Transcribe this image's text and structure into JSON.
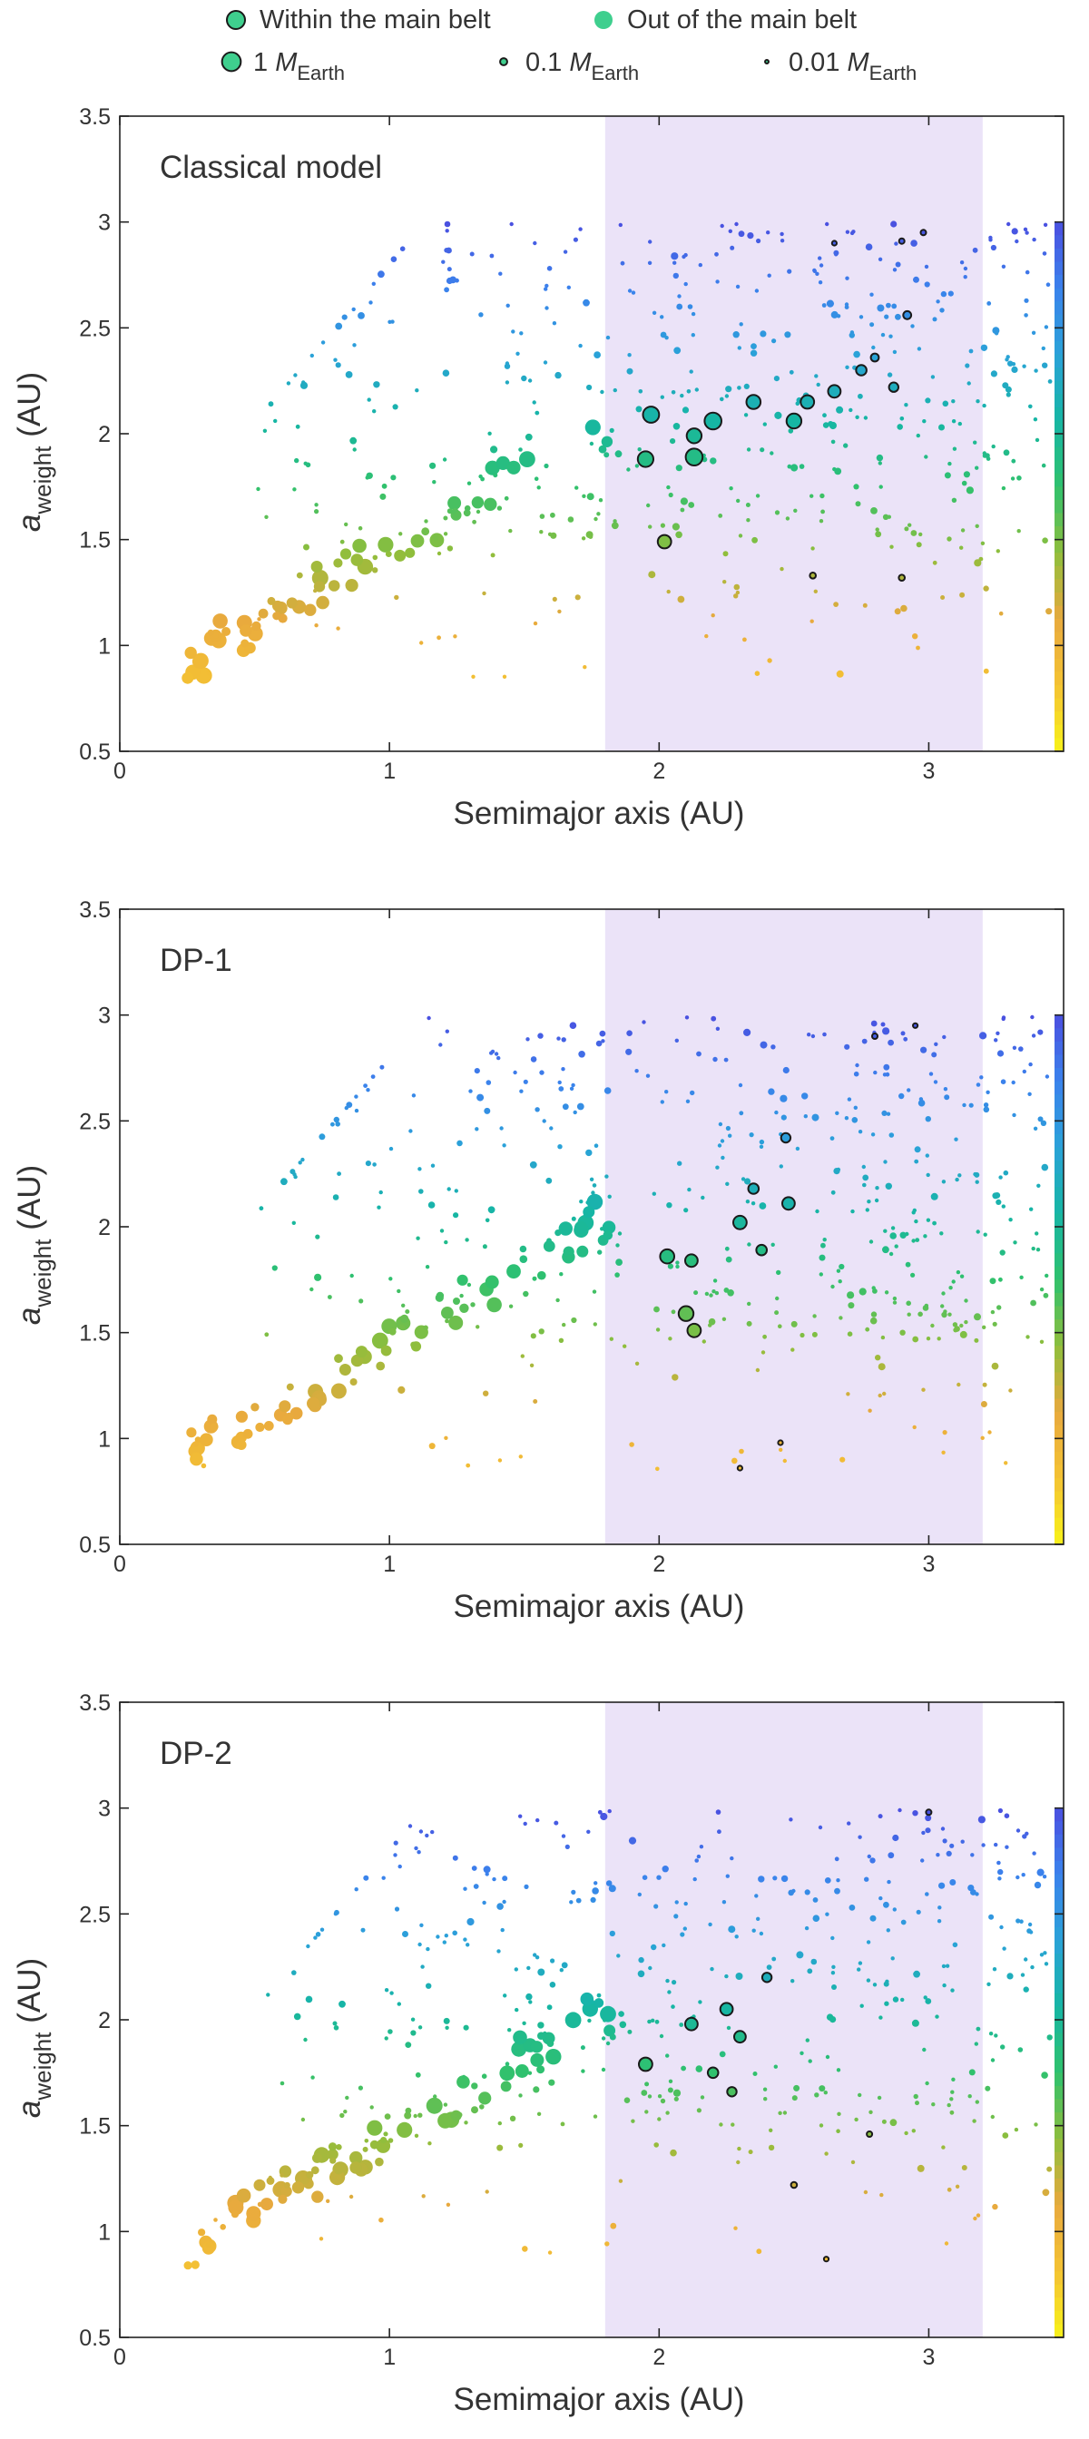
{
  "legend": {
    "row1": [
      {
        "label": "Within the main belt",
        "outlined": true
      },
      {
        "label": "Out of the main belt",
        "outlined": false
      }
    ],
    "row2": [
      {
        "prefix": "1 ",
        "symbol": "M",
        "subscript": "Earth",
        "mass": 1.0
      },
      {
        "prefix": "0.1 ",
        "symbol": "M",
        "subscript": "Earth",
        "mass": 0.1
      },
      {
        "prefix": "0.01 ",
        "symbol": "M",
        "subscript": "Earth",
        "mass": 0.01
      }
    ]
  },
  "colors": {
    "belt_band": "#ebe3f8",
    "outline": "#1a1a1a",
    "legend_fill": "#3fcf8e",
    "colormap": [
      "#f7f21a",
      "#f4c233",
      "#e8a93e",
      "#8fbe3c",
      "#30c16d",
      "#16b6a4",
      "#2aa2d8",
      "#3b82ec",
      "#4a4fe0"
    ]
  },
  "chart_data": [
    {
      "type": "scatter",
      "title": "Classical model",
      "xlabel": "Semimajor axis (AU)",
      "ylabel": {
        "base": "a",
        "sub": "weight",
        "unit": " (AU)"
      },
      "xlim": [
        0,
        3.5
      ],
      "ylim": [
        0.5,
        3.5
      ],
      "xticks": [
        "0",
        "1",
        "2",
        "3"
      ],
      "yticks": [
        "0.5",
        "1",
        "1.5",
        "2",
        "2.5",
        "3",
        "3.5"
      ],
      "main_belt": [
        1.8,
        3.2
      ],
      "colorbar_range": [
        0.5,
        3.0
      ],
      "highlighted_points": [
        {
          "x": 1.97,
          "y": 2.09,
          "m": 0.55
        },
        {
          "x": 1.95,
          "y": 1.88,
          "m": 0.5
        },
        {
          "x": 2.13,
          "y": 1.89,
          "m": 0.6
        },
        {
          "x": 2.13,
          "y": 1.99,
          "m": 0.45
        },
        {
          "x": 2.2,
          "y": 2.06,
          "m": 0.6
        },
        {
          "x": 2.02,
          "y": 1.49,
          "m": 0.35
        },
        {
          "x": 2.35,
          "y": 2.15,
          "m": 0.4
        },
        {
          "x": 2.5,
          "y": 2.06,
          "m": 0.45
        },
        {
          "x": 2.55,
          "y": 2.15,
          "m": 0.35
        },
        {
          "x": 2.65,
          "y": 2.2,
          "m": 0.3
        },
        {
          "x": 2.75,
          "y": 2.3,
          "m": 0.2
        },
        {
          "x": 2.87,
          "y": 2.22,
          "m": 0.15
        },
        {
          "x": 2.92,
          "y": 2.56,
          "m": 0.1
        },
        {
          "x": 2.8,
          "y": 2.36,
          "m": 0.1
        },
        {
          "x": 2.57,
          "y": 1.33,
          "m": 0.05
        },
        {
          "x": 2.9,
          "y": 1.32,
          "m": 0.05
        },
        {
          "x": 2.9,
          "y": 2.91,
          "m": 0.04
        },
        {
          "x": 2.98,
          "y": 2.95,
          "m": 0.04
        },
        {
          "x": 2.65,
          "y": 2.9,
          "m": 0.03
        }
      ],
      "gen": {
        "seed": 11,
        "n_in": 70,
        "n_scatter": 480
      }
    },
    {
      "type": "scatter",
      "title": "DP-1",
      "xlabel": "Semimajor axis (AU)",
      "ylabel": {
        "base": "a",
        "sub": "weight",
        "unit": " (AU)"
      },
      "xlim": [
        0,
        3.5
      ],
      "ylim": [
        0.5,
        3.5
      ],
      "xticks": [
        "0",
        "1",
        "2",
        "3"
      ],
      "yticks": [
        "0.5",
        "1",
        "1.5",
        "2",
        "2.5",
        "3",
        "3.5"
      ],
      "main_belt": [
        1.8,
        3.2
      ],
      "colorbar_range": [
        0.5,
        3.0
      ],
      "highlighted_points": [
        {
          "x": 2.03,
          "y": 1.86,
          "m": 0.4
        },
        {
          "x": 2.1,
          "y": 1.59,
          "m": 0.45
        },
        {
          "x": 2.13,
          "y": 1.51,
          "m": 0.35
        },
        {
          "x": 2.12,
          "y": 1.84,
          "m": 0.3
        },
        {
          "x": 2.3,
          "y": 2.02,
          "m": 0.35
        },
        {
          "x": 2.48,
          "y": 2.11,
          "m": 0.3
        },
        {
          "x": 2.35,
          "y": 2.18,
          "m": 0.2
        },
        {
          "x": 2.38,
          "y": 1.89,
          "m": 0.2
        },
        {
          "x": 2.47,
          "y": 2.42,
          "m": 0.15
        },
        {
          "x": 2.3,
          "y": 0.86,
          "m": 0.03
        },
        {
          "x": 2.45,
          "y": 0.98,
          "m": 0.03
        },
        {
          "x": 2.8,
          "y": 2.9,
          "m": 0.04
        },
        {
          "x": 2.95,
          "y": 2.95,
          "m": 0.03
        }
      ],
      "gen": {
        "seed": 23,
        "n_in": 80,
        "n_scatter": 470
      }
    },
    {
      "type": "scatter",
      "title": "DP-2",
      "xlabel": "Semimajor axis (AU)",
      "ylabel": {
        "base": "a",
        "sub": "weight",
        "unit": " (AU)"
      },
      "xlim": [
        0,
        3.5
      ],
      "ylim": [
        0.5,
        3.5
      ],
      "xticks": [
        "0",
        "1",
        "2",
        "3"
      ],
      "yticks": [
        "0.5",
        "1",
        "1.5",
        "2",
        "2.5",
        "3",
        "3.5"
      ],
      "main_belt": [
        1.8,
        3.2
      ],
      "colorbar_range": [
        0.5,
        3.0
      ],
      "highlighted_points": [
        {
          "x": 1.95,
          "y": 1.79,
          "m": 0.35
        },
        {
          "x": 2.12,
          "y": 1.98,
          "m": 0.3
        },
        {
          "x": 2.25,
          "y": 2.05,
          "m": 0.3
        },
        {
          "x": 2.3,
          "y": 1.92,
          "m": 0.25
        },
        {
          "x": 2.2,
          "y": 1.75,
          "m": 0.2
        },
        {
          "x": 2.27,
          "y": 1.66,
          "m": 0.15
        },
        {
          "x": 2.4,
          "y": 2.2,
          "m": 0.15
        },
        {
          "x": 2.5,
          "y": 1.22,
          "m": 0.05
        },
        {
          "x": 2.62,
          "y": 0.87,
          "m": 0.03
        },
        {
          "x": 2.78,
          "y": 1.46,
          "m": 0.04
        },
        {
          "x": 3.0,
          "y": 2.98,
          "m": 0.04
        }
      ],
      "gen": {
        "seed": 37,
        "n_in": 95,
        "n_scatter": 440
      }
    }
  ]
}
